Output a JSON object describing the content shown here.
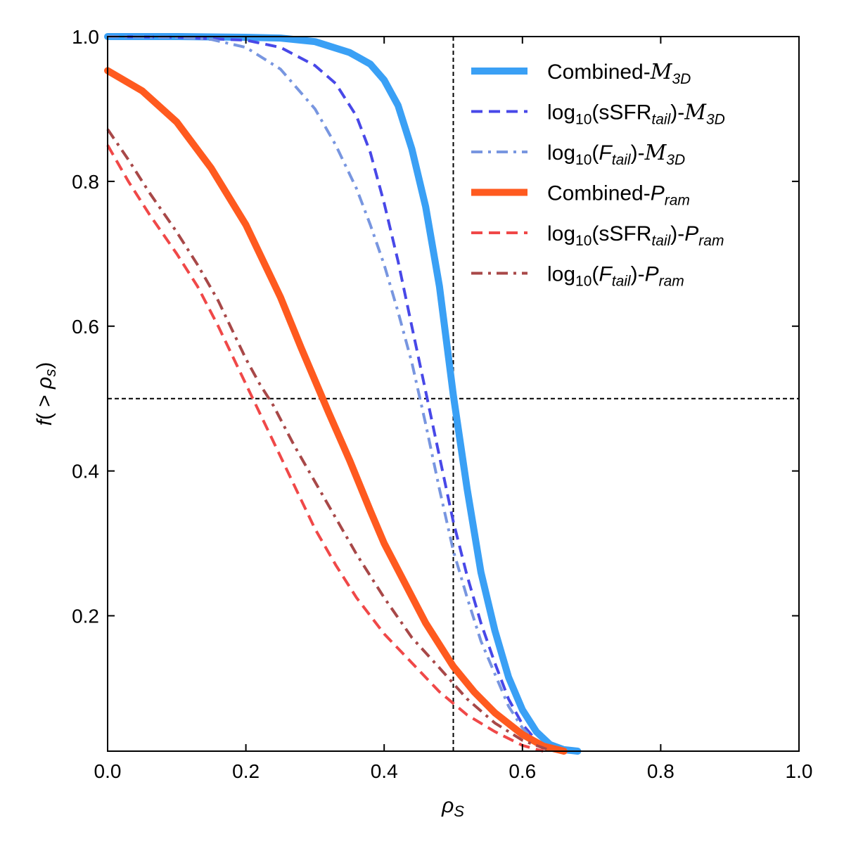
{
  "chart_data": {
    "type": "line",
    "xlabel": "ρ_S",
    "ylabel": "f(> ρ_s)",
    "xlim": [
      0.0,
      1.0
    ],
    "ylim": [
      0.013,
      1.0
    ],
    "xticks": [
      0.0,
      0.2,
      0.4,
      0.6,
      0.8,
      1.0
    ],
    "xtick_labels": [
      "0.0",
      "0.2",
      "0.4",
      "0.6",
      "0.8",
      "1.0"
    ],
    "yticks": [
      0.2,
      0.4,
      0.6,
      0.8,
      1.0
    ],
    "ytick_labels": [
      "0.2",
      "0.4",
      "0.6",
      "0.8",
      "1.0"
    ],
    "reference_lines": {
      "vertical_x": 0.5,
      "horizontal_y": 0.5
    },
    "legend_location": "upper-right",
    "series": [
      {
        "name": "Combined-M3D",
        "legend_label": {
          "pre": "Combined-",
          "sym": "M",
          "sub": "3D"
        },
        "color": "#3aa0f5",
        "style": "solid",
        "width": "thick",
        "x": [
          0.0,
          0.1,
          0.2,
          0.25,
          0.3,
          0.35,
          0.38,
          0.4,
          0.42,
          0.44,
          0.46,
          0.48,
          0.5,
          0.52,
          0.54,
          0.56,
          0.58,
          0.6,
          0.62,
          0.64,
          0.66,
          0.68
        ],
        "y": [
          1.0,
          1.0,
          0.999,
          0.998,
          0.993,
          0.978,
          0.962,
          0.94,
          0.905,
          0.845,
          0.765,
          0.655,
          0.505,
          0.375,
          0.26,
          0.18,
          0.115,
          0.07,
          0.04,
          0.022,
          0.015,
          0.013
        ]
      },
      {
        "name": "log10(sSFR_tail)-M3D",
        "legend_label": {
          "pre": "log",
          "pre_sub": "10",
          "mid": "(sSFR",
          "mid_sub": "tail",
          "post": ")-",
          "sym": "M",
          "sub": "3D"
        },
        "color": "#4848e8",
        "style": "dashed",
        "width": "medium",
        "x": [
          0.0,
          0.1,
          0.2,
          0.25,
          0.3,
          0.33,
          0.36,
          0.38,
          0.4,
          0.42,
          0.44,
          0.46,
          0.48,
          0.5,
          0.52,
          0.54,
          0.56,
          0.58,
          0.6,
          0.62,
          0.64,
          0.66
        ],
        "y": [
          1.0,
          0.999,
          0.995,
          0.985,
          0.96,
          0.935,
          0.89,
          0.84,
          0.77,
          0.69,
          0.6,
          0.51,
          0.42,
          0.33,
          0.255,
          0.19,
          0.135,
          0.085,
          0.05,
          0.028,
          0.016,
          0.013
        ]
      },
      {
        "name": "log10(F_tail)-M3D",
        "legend_label": {
          "pre": "log",
          "pre_sub": "10",
          "mid": "(",
          "mid_it": "F",
          "mid_sub": "tail",
          "post": ")-",
          "sym": "M",
          "sub": "3D"
        },
        "color": "#7896e0",
        "style": "dashdot",
        "width": "medium",
        "x": [
          0.0,
          0.1,
          0.15,
          0.2,
          0.25,
          0.3,
          0.33,
          0.36,
          0.38,
          0.4,
          0.42,
          0.44,
          0.46,
          0.48,
          0.5,
          0.52,
          0.54,
          0.56,
          0.58,
          0.6,
          0.62,
          0.64
        ],
        "y": [
          1.0,
          0.999,
          0.996,
          0.985,
          0.955,
          0.9,
          0.85,
          0.79,
          0.74,
          0.685,
          0.62,
          0.55,
          0.465,
          0.375,
          0.29,
          0.225,
          0.165,
          0.12,
          0.075,
          0.045,
          0.025,
          0.015
        ]
      },
      {
        "name": "Combined-Pram",
        "legend_label": {
          "pre": "Combined-",
          "ital": "P",
          "sub": "ram"
        },
        "color": "#ff5a1f",
        "style": "solid",
        "width": "thick",
        "x": [
          0.0,
          0.05,
          0.1,
          0.15,
          0.2,
          0.25,
          0.28,
          0.3,
          0.32,
          0.35,
          0.38,
          0.4,
          0.43,
          0.46,
          0.5,
          0.53,
          0.56,
          0.6,
          0.63,
          0.66
        ],
        "y": [
          0.953,
          0.925,
          0.882,
          0.818,
          0.74,
          0.64,
          0.57,
          0.525,
          0.48,
          0.415,
          0.345,
          0.3,
          0.245,
          0.19,
          0.13,
          0.095,
          0.066,
          0.036,
          0.02,
          0.013
        ]
      },
      {
        "name": "log10(sSFR_tail)-Pram",
        "legend_label": {
          "pre": "log",
          "pre_sub": "10",
          "mid": "(sSFR",
          "mid_sub": "tail",
          "post": ")-",
          "ital": "P",
          "sub": "ram"
        },
        "color": "#f04848",
        "style": "dashed",
        "width": "medium",
        "x": [
          0.0,
          0.03,
          0.06,
          0.1,
          0.13,
          0.16,
          0.2,
          0.22,
          0.25,
          0.28,
          0.3,
          0.33,
          0.36,
          0.4,
          0.44,
          0.48,
          0.52,
          0.56,
          0.6,
          0.63
        ],
        "y": [
          0.85,
          0.8,
          0.755,
          0.7,
          0.655,
          0.6,
          0.52,
          0.48,
          0.42,
          0.36,
          0.32,
          0.27,
          0.225,
          0.175,
          0.135,
          0.095,
          0.063,
          0.04,
          0.021,
          0.013
        ]
      },
      {
        "name": "log10(F_tail)-Pram",
        "legend_label": {
          "pre": "log",
          "pre_sub": "10",
          "mid": "(",
          "mid_it": "F",
          "mid_sub": "tail",
          "post": ")-",
          "ital": "P",
          "sub": "ram"
        },
        "color": "#a84848",
        "style": "dashdot",
        "width": "medium",
        "x": [
          0.0,
          0.03,
          0.06,
          0.1,
          0.13,
          0.16,
          0.2,
          0.22,
          0.24,
          0.27,
          0.3,
          0.33,
          0.36,
          0.4,
          0.44,
          0.48,
          0.52,
          0.56,
          0.6,
          0.64
        ],
        "y": [
          0.872,
          0.83,
          0.785,
          0.73,
          0.685,
          0.635,
          0.555,
          0.52,
          0.49,
          0.435,
          0.385,
          0.335,
          0.285,
          0.225,
          0.17,
          0.128,
          0.085,
          0.052,
          0.028,
          0.014
        ]
      }
    ]
  }
}
